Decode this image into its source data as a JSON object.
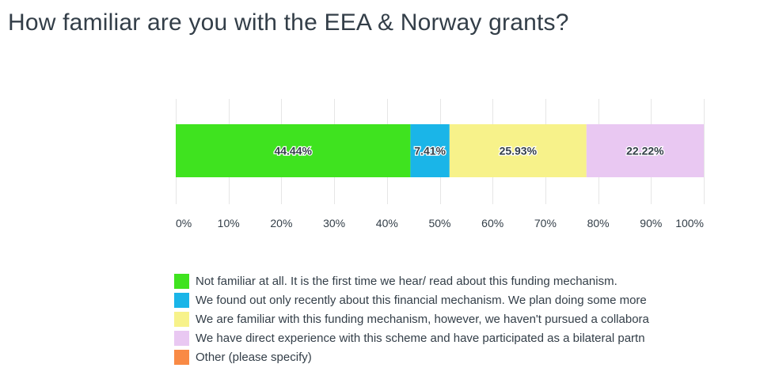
{
  "title": "How familiar are you with the EEA & Norway grants?",
  "colors": {
    "grid": "#e6e6e6",
    "text": "#333e48"
  },
  "chart_data": {
    "type": "bar",
    "orientation": "horizontal",
    "stacked": true,
    "xlim": [
      0,
      100
    ],
    "x_ticks": [
      "0%",
      "10%",
      "20%",
      "30%",
      "40%",
      "50%",
      "60%",
      "70%",
      "80%",
      "90%",
      "100%"
    ],
    "grid": true,
    "legend_position": "bottom",
    "series": [
      {
        "name": "Not familiar at all. It is the first time we hear/ read about this funding mechanism.",
        "value": 44.44,
        "label": "44.44%",
        "color": "#3fe31f"
      },
      {
        "name": "We found out only recently about this financial mechanism. We plan doing some more",
        "value": 7.41,
        "label": "7.41%",
        "color": "#1ab5e8"
      },
      {
        "name": "We are familiar with this funding mechanism, however, we haven't pursued a collabora",
        "value": 25.93,
        "label": "25.93%",
        "color": "#f7f28a"
      },
      {
        "name": "We have direct experience with this scheme and have participated as a bilateral partn",
        "value": 22.22,
        "label": "22.22%",
        "color": "#e9c8f2"
      },
      {
        "name": "Other (please specify)",
        "value": 0,
        "label": "",
        "color": "#f98a45"
      }
    ]
  }
}
